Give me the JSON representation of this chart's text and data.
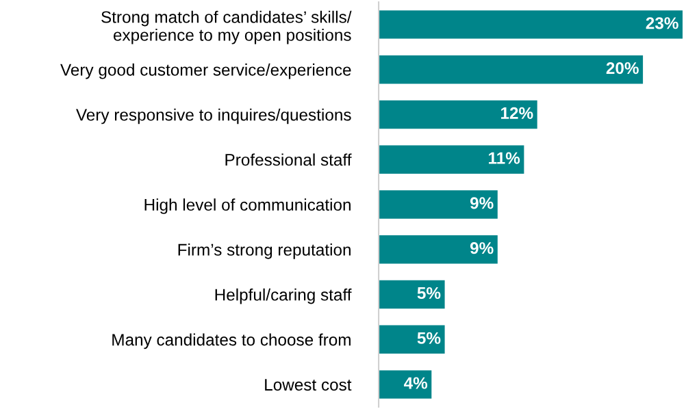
{
  "chart_data": {
    "type": "bar",
    "orientation": "horizontal",
    "categories": [
      "Strong match of candidates’ skills/\nexperience to my open positions",
      "Very good customer service/experience",
      "Very responsive to inquires/questions",
      "Professional staff",
      "High level of communication",
      "Firm’s strong reputation",
      "Helpful/caring staff",
      "Many candidates to choose from",
      "Lowest cost"
    ],
    "values": [
      23,
      20,
      12,
      11,
      9,
      9,
      5,
      5,
      4
    ],
    "value_labels": [
      "23%",
      "20%",
      "12%",
      "11%",
      "9%",
      "9%",
      "5%",
      "5%",
      "4%"
    ],
    "color": "#00858a",
    "xlim": [
      0,
      23
    ],
    "tick_labels": "y",
    "grid": false,
    "legend": false
  }
}
